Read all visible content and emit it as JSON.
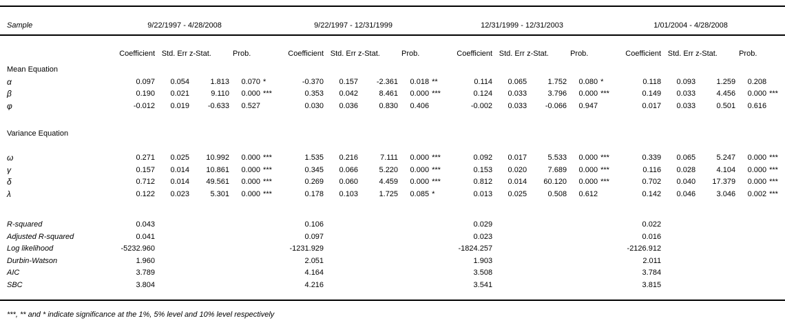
{
  "table": {
    "corner_label": "Sample",
    "samples": [
      {
        "period": "9/22/1997 - 4/28/2008"
      },
      {
        "period": "9/22/1997 - 12/31/1999"
      },
      {
        "period": "12/31/1999 - 12/31/2003"
      },
      {
        "period": "1/01/2004 - 4/28/2008"
      }
    ],
    "col_headers": [
      "Coefficient",
      "Std. Err",
      "z-Stat.",
      "Prob."
    ],
    "sections": [
      {
        "title": "Mean Equation",
        "rows": [
          {
            "param": "α",
            "est": [
              {
                "coef": "0.097",
                "se": "0.054",
                "z": "1.813",
                "p": "0.070",
                "sig": "*"
              },
              {
                "coef": "-0.370",
                "se": "0.157",
                "z": "-2.361",
                "p": "0.018",
                "sig": "**"
              },
              {
                "coef": "0.114",
                "se": "0.065",
                "z": "1.752",
                "p": "0.080",
                "sig": "*"
              },
              {
                "coef": "0.118",
                "se": "0.093",
                "z": "1.259",
                "p": "0.208",
                "sig": ""
              }
            ]
          },
          {
            "param": "β",
            "est": [
              {
                "coef": "0.190",
                "se": "0.021",
                "z": "9.110",
                "p": "0.000",
                "sig": "***"
              },
              {
                "coef": "0.353",
                "se": "0.042",
                "z": "8.461",
                "p": "0.000",
                "sig": "***"
              },
              {
                "coef": "0.124",
                "se": "0.033",
                "z": "3.796",
                "p": "0.000",
                "sig": "***"
              },
              {
                "coef": "0.149",
                "se": "0.033",
                "z": "4.456",
                "p": "0.000",
                "sig": "***"
              }
            ]
          },
          {
            "param": "φ",
            "est": [
              {
                "coef": "-0.012",
                "se": "0.019",
                "z": "-0.633",
                "p": "0.527",
                "sig": ""
              },
              {
                "coef": "0.030",
                "se": "0.036",
                "z": "0.830",
                "p": "0.406",
                "sig": ""
              },
              {
                "coef": "-0.002",
                "se": "0.033",
                "z": "-0.066",
                "p": "0.947",
                "sig": ""
              },
              {
                "coef": "0.017",
                "se": "0.033",
                "z": "0.501",
                "p": "0.616",
                "sig": ""
              }
            ]
          }
        ]
      },
      {
        "title": "Variance Equation",
        "rows": [
          {
            "param": "ω",
            "est": [
              {
                "coef": "0.271",
                "se": "0.025",
                "z": "10.992",
                "p": "0.000",
                "sig": "***"
              },
              {
                "coef": "1.535",
                "se": "0.216",
                "z": "7.111",
                "p": "0.000",
                "sig": "***"
              },
              {
                "coef": "0.092",
                "se": "0.017",
                "z": "5.533",
                "p": "0.000",
                "sig": "***"
              },
              {
                "coef": "0.339",
                "se": "0.065",
                "z": "5.247",
                "p": "0.000",
                "sig": "***"
              }
            ]
          },
          {
            "param": "γ",
            "est": [
              {
                "coef": "0.157",
                "se": "0.014",
                "z": "10.861",
                "p": "0.000",
                "sig": "***"
              },
              {
                "coef": "0.345",
                "se": "0.066",
                "z": "5.220",
                "p": "0.000",
                "sig": "***"
              },
              {
                "coef": "0.153",
                "se": "0.020",
                "z": "7.689",
                "p": "0.000",
                "sig": "***"
              },
              {
                "coef": "0.116",
                "se": "0.028",
                "z": "4.104",
                "p": "0.000",
                "sig": "***"
              }
            ]
          },
          {
            "param": "δ",
            "est": [
              {
                "coef": "0.712",
                "se": "0.014",
                "z": "49.561",
                "p": "0.000",
                "sig": "***"
              },
              {
                "coef": "0.269",
                "se": "0.060",
                "z": "4.459",
                "p": "0.000",
                "sig": "***"
              },
              {
                "coef": "0.812",
                "se": "0.014",
                "z": "60.120",
                "p": "0.000",
                "sig": "***"
              },
              {
                "coef": "0.702",
                "se": "0.040",
                "z": "17.379",
                "p": "0.000",
                "sig": "***"
              }
            ]
          },
          {
            "param": "λ",
            "est": [
              {
                "coef": "0.122",
                "se": "0.023",
                "z": "5.301",
                "p": "0.000",
                "sig": "***"
              },
              {
                "coef": "0.178",
                "se": "0.103",
                "z": "1.725",
                "p": "0.085",
                "sig": "*"
              },
              {
                "coef": "0.013",
                "se": "0.025",
                "z": "0.508",
                "p": "0.612",
                "sig": ""
              },
              {
                "coef": "0.142",
                "se": "0.046",
                "z": "3.046",
                "p": "0.002",
                "sig": "***"
              }
            ]
          }
        ]
      }
    ],
    "stats": [
      {
        "label": "R-squared",
        "values": [
          "0.043",
          "0.106",
          "0.029",
          "0.022"
        ]
      },
      {
        "label": "Adjusted R-squared",
        "values": [
          "0.041",
          "0.097",
          "0.023",
          "0.016"
        ]
      },
      {
        "label": "Log likelihood",
        "values": [
          "-5232.960",
          "-1231.929",
          "-1824.257",
          "-2126.912"
        ]
      },
      {
        "label": "Durbin-Watson",
        "values": [
          "1.960",
          "2.051",
          "1.903",
          "2.011"
        ]
      },
      {
        "label": "AIC",
        "values": [
          "3.789",
          "4.164",
          "3.508",
          "3.784"
        ]
      },
      {
        "label": "SBC",
        "values": [
          "3.804",
          "4.216",
          "3.541",
          "3.815"
        ]
      }
    ],
    "footnote": "***, ** and * indicate significance at the 1%, 5% level and 10% level respectively"
  }
}
